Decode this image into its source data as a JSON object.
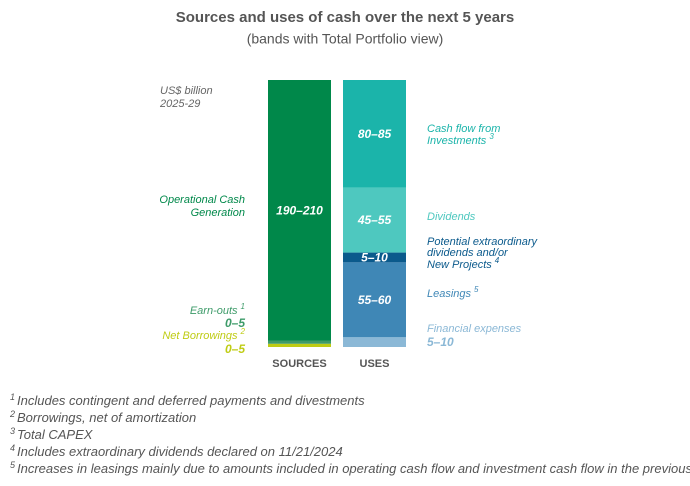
{
  "chart_data": {
    "type": "stacked-range-bar",
    "title": "Sources and uses of cash over the next 5 years",
    "subtitle": "(bands with Total Portfolio view)",
    "unit": [
      "US$ billion",
      "2025-29"
    ],
    "categories": [
      "SOURCES",
      "USES"
    ],
    "bars": [
      {
        "segments": [
          {
            "name": [
              "Operational Cash",
              "Generation"
            ],
            "range": [
              190,
              210
            ],
            "value_label": "190–210",
            "color": "#00884a"
          },
          {
            "name": [
              "Earn-outs"
            ],
            "note": "1",
            "range": [
              0,
              5
            ],
            "value_label": "0–5",
            "color": "#3d9b69"
          },
          {
            "name": [
              "Net Borrowings"
            ],
            "note": "2",
            "range": [
              0,
              5
            ],
            "value_label": "0–5",
            "color": "#bfcc14"
          }
        ]
      },
      {
        "segments": [
          {
            "name": [
              "Cash flow from",
              "Investments"
            ],
            "note": "3",
            "range": [
              80,
              85
            ],
            "value_label": "80–85",
            "color": "#1bb4aa"
          },
          {
            "name": [
              "Dividends"
            ],
            "range": [
              45,
              55
            ],
            "value_label": "45–55",
            "color": "#4ec8bf"
          },
          {
            "name": [
              "Potential extraordinary",
              "dividends and/or",
              "New Projects"
            ],
            "note": "4",
            "range": [
              5,
              10
            ],
            "value_label": "5–10",
            "color": "#0b5a8c"
          },
          {
            "name": [
              "Leasings"
            ],
            "note": "5",
            "range": [
              55,
              60
            ],
            "value_label": "55–60",
            "color": "#3f87b6"
          },
          {
            "name": [
              "Financial expenses"
            ],
            "range": [
              5,
              10
            ],
            "value_label": "5–10",
            "color": "#8bb8d6"
          }
        ]
      }
    ],
    "footnotes": [
      {
        "mark": "1",
        "text": "Includes contingent and deferred payments and divestments"
      },
      {
        "mark": "2",
        "text": "Borrowings, net of amortization"
      },
      {
        "mark": "3",
        "text": "Total CAPEX"
      },
      {
        "mark": "4",
        "text": "Includes extraordinary dividends declared on 11/21/2024"
      },
      {
        "mark": "5",
        "text": "Increases in leasings mainly due to amounts included in operating cash flow and investment cash flow in the previous plan"
      }
    ]
  }
}
